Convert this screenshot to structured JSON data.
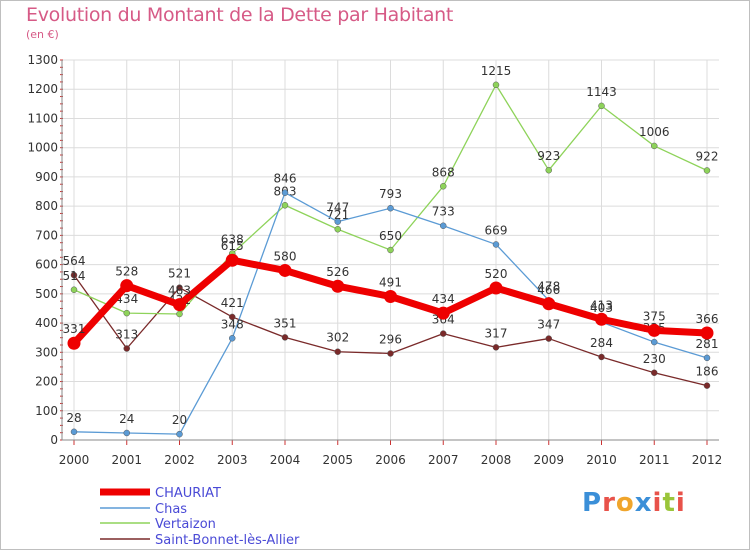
{
  "header": {
    "title": "Evolution du Montant de la Dette par Habitant",
    "unit": "(en €)"
  },
  "logo": {
    "text": "Proxiti",
    "letter_colors": [
      "#3b8fd8",
      "#e8524a",
      "#f0a52c",
      "#3b8fd8",
      "#e8524a",
      "#9ac53a",
      "#e8524a"
    ]
  },
  "chart_data": {
    "type": "line",
    "title": "Evolution du Montant de la Dette par Habitant",
    "subtitle": "(en €)",
    "xlabel": "",
    "ylabel": "",
    "x": [
      "2000",
      "2001",
      "2002",
      "2003",
      "2004",
      "2005",
      "2006",
      "2007",
      "2008",
      "2009",
      "2010",
      "2011",
      "2012"
    ],
    "ylim": [
      0,
      1300
    ],
    "yticks": [
      "0",
      "100",
      "200",
      "300",
      "400",
      "500",
      "600",
      "700",
      "800",
      "900",
      "1000",
      "1100",
      "1200",
      "1300"
    ],
    "grid": true,
    "legend_position": "bottom-left",
    "series": [
      {
        "name": "CHAURIAT",
        "color": "#ee0000",
        "values": [
          331,
          528,
          463,
          615,
          580,
          526,
          491,
          434,
          520,
          466,
          413,
          375,
          366
        ],
        "labels": [
          "331",
          "528",
          "463",
          "615",
          "580",
          "526",
          "491",
          "434",
          "520",
          "466",
          "413",
          "375",
          "366"
        ]
      },
      {
        "name": "Chas",
        "color": "#5b9bd5",
        "values": [
          28,
          24,
          20,
          348,
          846,
          747,
          793,
          733,
          669,
          478,
          403,
          335,
          281
        ],
        "labels": [
          "28",
          "24",
          "20",
          "348",
          "846",
          "747",
          "793",
          "733",
          "669",
          "478",
          "403",
          "335",
          "281"
        ]
      },
      {
        "name": "Vertaizon",
        "color": "#8ed35a",
        "values": [
          514,
          434,
          431,
          638,
          803,
          721,
          650,
          868,
          1215,
          923,
          1143,
          1006,
          922
        ],
        "labels": [
          "514",
          "434",
          "431",
          "638",
          "803",
          "721",
          "650",
          "868",
          "1215",
          "923",
          "1143",
          "1006",
          "922"
        ]
      },
      {
        "name": "Saint-Bonnet-lès-Allier",
        "color": "#7a2a2a",
        "values": [
          564,
          313,
          521,
          421,
          351,
          302,
          296,
          364,
          317,
          347,
          284,
          230,
          186
        ],
        "labels": [
          "564",
          "313",
          "521",
          "421",
          "351",
          "302",
          "296",
          "364",
          "317",
          "347",
          "284",
          "230",
          "186"
        ]
      }
    ]
  }
}
